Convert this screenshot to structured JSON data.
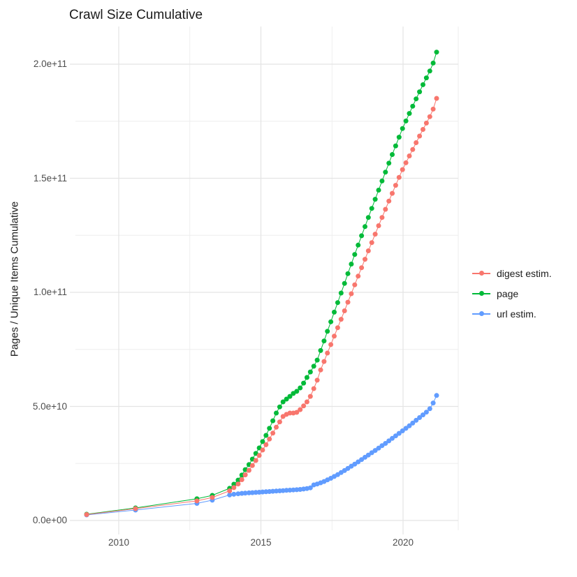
{
  "title": "Crawl Size Cumulative",
  "ylabel": "Pages / Unique Items Cumulative",
  "legend": {
    "position": "right",
    "items": [
      {
        "label": "digest estim.",
        "color": "#F8766D"
      },
      {
        "label": "page",
        "color": "#00BA38"
      },
      {
        "label": "url estim.",
        "color": "#619CFF"
      }
    ]
  },
  "colors": {
    "digest": "#F8766D",
    "page": "#00BA38",
    "url": "#619CFF",
    "grid_major": "#e4e4e4",
    "grid_minor": "#ededed",
    "axis_text": "#4d4d4d",
    "title_text": "#1a1a1a",
    "background": "#ffffff"
  },
  "chart_data": {
    "type": "scatter",
    "title": "Crawl Size Cumulative",
    "xlabel": "",
    "ylabel": "Pages / Unique Items Cumulative",
    "grid": true,
    "legend_position": "right",
    "x_ticks": {
      "major": [
        2010,
        2015,
        2020
      ],
      "labels": [
        "2010",
        "2015",
        "2020"
      ],
      "minor": [
        2012.5,
        2017.5
      ]
    },
    "y_ticks": {
      "major": [
        0,
        50000000000.0,
        100000000000.0,
        150000000000.0,
        200000000000.0
      ],
      "labels": [
        "0.0e+00",
        "5.0e+10",
        "1.0e+11",
        "1.5e+11",
        "2.0e+11"
      ],
      "minor": [
        25000000000.0,
        75000000000.0,
        125000000000.0,
        175000000000.0
      ]
    },
    "x_domain": [
      2008.6,
      2021.9
    ],
    "y_domain": [
      0,
      215000000000.0
    ],
    "series": [
      {
        "name": "digest estim.",
        "color": "#F8766D",
        "points": [
          [
            2008.87,
            2600000000.0
          ],
          [
            2010.59,
            5200000000.0
          ],
          [
            2012.75,
            8600000000.0
          ],
          [
            2013.29,
            10100000000.0
          ],
          [
            2013.9,
            13000000000.0
          ],
          [
            2014.05,
            14400000000.0
          ],
          [
            2014.2,
            16000000000.0
          ],
          [
            2014.33,
            17900000000.0
          ],
          [
            2014.45,
            20000000000.0
          ],
          [
            2014.58,
            22000000000.0
          ],
          [
            2014.7,
            24100000000.0
          ],
          [
            2014.82,
            26300000000.0
          ],
          [
            2014.94,
            28500000000.0
          ],
          [
            2015.06,
            30900000000.0
          ],
          [
            2015.18,
            33200000000.0
          ],
          [
            2015.3,
            35700000000.0
          ],
          [
            2015.42,
            38300000000.0
          ],
          [
            2015.54,
            40900000000.0
          ],
          [
            2015.66,
            43200000000.0
          ],
          [
            2015.78,
            45600000000.0
          ],
          [
            2015.9,
            46500000000.0
          ],
          [
            2016.02,
            47100000000.0
          ],
          [
            2016.14,
            47100000000.0
          ],
          [
            2016.26,
            47400000000.0
          ],
          [
            2016.38,
            48600000000.0
          ],
          [
            2016.5,
            50200000000.0
          ],
          [
            2016.62,
            52000000000.0
          ],
          [
            2016.74,
            54400000000.0
          ],
          [
            2016.86,
            57800000000.0
          ],
          [
            2016.98,
            61500000000.0
          ],
          [
            2017.1,
            66000000000.0
          ],
          [
            2017.22,
            69700000000.0
          ],
          [
            2017.34,
            73400000000.0
          ],
          [
            2017.46,
            77100000000.0
          ],
          [
            2017.58,
            80800000000.0
          ],
          [
            2017.7,
            84500000000.0
          ],
          [
            2017.82,
            88200000000.0
          ],
          [
            2017.94,
            91900000000.0
          ],
          [
            2018.06,
            95700000000.0
          ],
          [
            2018.18,
            99400000000.0
          ],
          [
            2018.3,
            103300000000.0
          ],
          [
            2018.42,
            107100000000.0
          ],
          [
            2018.54,
            110800000000.0
          ],
          [
            2018.66,
            114500000000.0
          ],
          [
            2018.78,
            118200000000.0
          ],
          [
            2018.9,
            121800000000.0
          ],
          [
            2019.02,
            125500000000.0
          ],
          [
            2019.14,
            129200000000.0
          ],
          [
            2019.26,
            132800000000.0
          ],
          [
            2019.38,
            136400000000.0
          ],
          [
            2019.5,
            140000000000.0
          ],
          [
            2019.62,
            143400000000.0
          ],
          [
            2019.74,
            146900000000.0
          ],
          [
            2019.86,
            150400000000.0
          ],
          [
            2019.98,
            153800000000.0
          ],
          [
            2020.1,
            156800000000.0
          ],
          [
            2020.22,
            159800000000.0
          ],
          [
            2020.34,
            162600000000.0
          ],
          [
            2020.46,
            165600000000.0
          ],
          [
            2020.58,
            168500000000.0
          ],
          [
            2020.7,
            171400000000.0
          ],
          [
            2020.82,
            174200000000.0
          ],
          [
            2020.94,
            177000000000.0
          ],
          [
            2021.06,
            180300000000.0
          ],
          [
            2021.18,
            185000000000.0
          ]
        ]
      },
      {
        "name": "page",
        "color": "#00BA38",
        "points": [
          [
            2008.87,
            2750000000.0
          ],
          [
            2010.59,
            5500000000.0
          ],
          [
            2012.75,
            9500000000.0
          ],
          [
            2013.29,
            11000000000.0
          ],
          [
            2013.9,
            14100000000.0
          ],
          [
            2014.05,
            15900000000.0
          ],
          [
            2014.2,
            17700000000.0
          ],
          [
            2014.33,
            19900000000.0
          ],
          [
            2014.45,
            22300000000.0
          ],
          [
            2014.58,
            24500000000.0
          ],
          [
            2014.7,
            26900000000.0
          ],
          [
            2014.82,
            29400000000.0
          ],
          [
            2014.94,
            31800000000.0
          ],
          [
            2015.06,
            34600000000.0
          ],
          [
            2015.18,
            37300000000.0
          ],
          [
            2015.3,
            40400000000.0
          ],
          [
            2015.42,
            43700000000.0
          ],
          [
            2015.54,
            47100000000.0
          ],
          [
            2015.66,
            49800000000.0
          ],
          [
            2015.78,
            52000000000.0
          ],
          [
            2015.9,
            53200000000.0
          ],
          [
            2016.02,
            54400000000.0
          ],
          [
            2016.14,
            55700000000.0
          ],
          [
            2016.26,
            56600000000.0
          ],
          [
            2016.38,
            58100000000.0
          ],
          [
            2016.5,
            60200000000.0
          ],
          [
            2016.62,
            62700000000.0
          ],
          [
            2016.74,
            65100000000.0
          ],
          [
            2016.86,
            67600000000.0
          ],
          [
            2016.98,
            70300000000.0
          ],
          [
            2017.1,
            74500000000.0
          ],
          [
            2017.22,
            78700000000.0
          ],
          [
            2017.34,
            82900000000.0
          ],
          [
            2017.46,
            87100000000.0
          ],
          [
            2017.58,
            91300000000.0
          ],
          [
            2017.7,
            95500000000.0
          ],
          [
            2017.82,
            99700000000.0
          ],
          [
            2017.94,
            103900000000.0
          ],
          [
            2018.06,
            108200000000.0
          ],
          [
            2018.18,
            112400000000.0
          ],
          [
            2018.3,
            116600000000.0
          ],
          [
            2018.42,
            120700000000.0
          ],
          [
            2018.54,
            124800000000.0
          ],
          [
            2018.66,
            128800000000.0
          ],
          [
            2018.78,
            132800000000.0
          ],
          [
            2018.9,
            136800000000.0
          ],
          [
            2019.02,
            140800000000.0
          ],
          [
            2019.14,
            144800000000.0
          ],
          [
            2019.26,
            148800000000.0
          ],
          [
            2019.38,
            152700000000.0
          ],
          [
            2019.5,
            156600000000.0
          ],
          [
            2019.62,
            160400000000.0
          ],
          [
            2019.74,
            164200000000.0
          ],
          [
            2019.86,
            168000000000.0
          ],
          [
            2019.98,
            171800000000.0
          ],
          [
            2020.1,
            175100000000.0
          ],
          [
            2020.22,
            178400000000.0
          ],
          [
            2020.34,
            181600000000.0
          ],
          [
            2020.46,
            184800000000.0
          ],
          [
            2020.58,
            187900000000.0
          ],
          [
            2020.7,
            191000000000.0
          ],
          [
            2020.82,
            194000000000.0
          ],
          [
            2020.94,
            197000000000.0
          ],
          [
            2021.06,
            200500000000.0
          ],
          [
            2021.18,
            205300000000.0
          ]
        ]
      },
      {
        "name": "url estim.",
        "color": "#619CFF",
        "points": [
          [
            2008.87,
            2450000000.0
          ],
          [
            2010.59,
            4600000000.0
          ],
          [
            2012.75,
            7500000000.0
          ],
          [
            2013.29,
            8900000000.0
          ],
          [
            2013.9,
            11200000000.0
          ],
          [
            2014.05,
            11500000000.0
          ],
          [
            2014.2,
            11700000000.0
          ],
          [
            2014.33,
            11900000000.0
          ],
          [
            2014.45,
            12000000000.0
          ],
          [
            2014.58,
            12100000000.0
          ],
          [
            2014.7,
            12200000000.0
          ],
          [
            2014.82,
            12300000000.0
          ],
          [
            2014.94,
            12400000000.0
          ],
          [
            2015.06,
            12500000000.0
          ],
          [
            2015.18,
            12600000000.0
          ],
          [
            2015.3,
            12700000000.0
          ],
          [
            2015.42,
            12800000000.0
          ],
          [
            2015.54,
            12900000000.0
          ],
          [
            2015.66,
            13000000000.0
          ],
          [
            2015.78,
            13100000000.0
          ],
          [
            2015.9,
            13200000000.0
          ],
          [
            2016.02,
            13300000000.0
          ],
          [
            2016.14,
            13400000000.0
          ],
          [
            2016.26,
            13500000000.0
          ],
          [
            2016.38,
            13600000000.0
          ],
          [
            2016.5,
            13800000000.0
          ],
          [
            2016.62,
            14000000000.0
          ],
          [
            2016.74,
            14300000000.0
          ],
          [
            2016.86,
            15600000000.0
          ],
          [
            2016.98,
            16000000000.0
          ],
          [
            2017.1,
            16500000000.0
          ],
          [
            2017.22,
            17100000000.0
          ],
          [
            2017.34,
            17800000000.0
          ],
          [
            2017.46,
            18500000000.0
          ],
          [
            2017.58,
            19300000000.0
          ],
          [
            2017.7,
            20100000000.0
          ],
          [
            2017.82,
            21000000000.0
          ],
          [
            2017.94,
            21900000000.0
          ],
          [
            2018.06,
            22800000000.0
          ],
          [
            2018.18,
            23800000000.0
          ],
          [
            2018.3,
            24700000000.0
          ],
          [
            2018.42,
            25700000000.0
          ],
          [
            2018.54,
            26700000000.0
          ],
          [
            2018.66,
            27700000000.0
          ],
          [
            2018.78,
            28700000000.0
          ],
          [
            2018.9,
            29700000000.0
          ],
          [
            2019.02,
            30700000000.0
          ],
          [
            2019.14,
            31700000000.0
          ],
          [
            2019.26,
            32800000000.0
          ],
          [
            2019.38,
            33800000000.0
          ],
          [
            2019.5,
            34900000000.0
          ],
          [
            2019.62,
            36000000000.0
          ],
          [
            2019.74,
            37100000000.0
          ],
          [
            2019.86,
            38200000000.0
          ],
          [
            2019.98,
            39300000000.0
          ],
          [
            2020.1,
            40400000000.0
          ],
          [
            2020.22,
            41500000000.0
          ],
          [
            2020.34,
            42700000000.0
          ],
          [
            2020.46,
            43900000000.0
          ],
          [
            2020.58,
            45100000000.0
          ],
          [
            2020.7,
            46300000000.0
          ],
          [
            2020.82,
            47500000000.0
          ],
          [
            2020.94,
            49000000000.0
          ],
          [
            2021.06,
            51500000000.0
          ],
          [
            2021.18,
            54800000000.0
          ]
        ]
      }
    ]
  }
}
